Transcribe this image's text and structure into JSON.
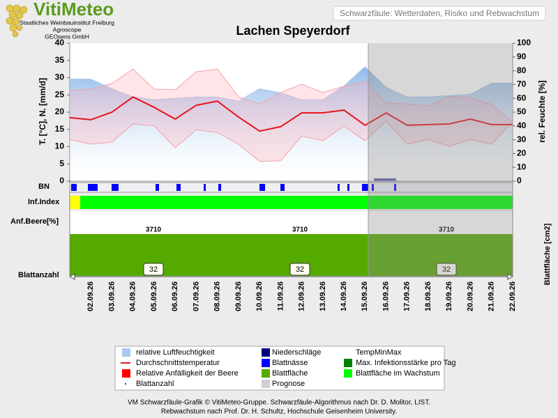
{
  "header": {
    "logo": "VitiMeteo",
    "org_lines": [
      "Staatliches Weinbauinstitut Freiburg",
      "Agroscope",
      "GEOsens GmbH"
    ],
    "subtitle_box": "Schwarzfäule: Wetterdaten, Risiko und Rebwachstum"
  },
  "chart_data": {
    "type": "line",
    "title": "Lachen Speyerdorf",
    "categories": [
      null,
      "02.09.26",
      "03.09.26",
      "04.09.26",
      "05.09.26",
      "06.09.26",
      "07.09.26",
      "08.09.26",
      "09.09.26",
      "10.09.26",
      "11.09.26",
      "12.09.26",
      "13.09.26",
      "14.09.26",
      "15.09.26",
      "16.09.26",
      "17.09.26",
      "18.09.26",
      "19.09.26",
      "20.09.26",
      "21.09.26",
      "22.09.26"
    ],
    "ylim": [
      0,
      40
    ],
    "yticks": [
      0,
      5,
      10,
      15,
      20,
      25,
      30,
      35,
      40
    ],
    "y2lim": [
      0,
      100
    ],
    "y2ticks": [
      0,
      10,
      20,
      30,
      40,
      50,
      60,
      70,
      80,
      90,
      100
    ],
    "ylabel": "T. [°C], N. [mm/d]",
    "y2label": "rel. Feuchte [%]",
    "series": [
      {
        "name": "relative Luftfeuchtigkeit",
        "color": "#a9c9ee",
        "axis": "y2",
        "values": [
          74,
          74,
          67,
          61,
          59,
          60,
          61,
          61,
          58,
          67,
          64,
          59,
          59,
          69,
          83,
          68,
          61,
          61,
          62,
          63,
          71,
          71
        ]
      },
      {
        "name": "Durchschnittstemperatur",
        "color": "#e8141c",
        "values": [
          18.4,
          17.8,
          20.0,
          24.4,
          21.4,
          18.0,
          22.0,
          23.2,
          18.6,
          14.5,
          15.8,
          19.8,
          19.8,
          20.6,
          16.2,
          19.8,
          16.2,
          16.4,
          16.6,
          18.0,
          16.4,
          16.4
        ]
      },
      {
        "name": "TempMinMax",
        "color": "#f2a0a8",
        "max": [
          26.3,
          26.7,
          28.3,
          32.5,
          26.7,
          26.5,
          31.7,
          32.5,
          24.4,
          22.4,
          25.7,
          28.1,
          25.7,
          27.5,
          28.9,
          22.6,
          22.4,
          21.8,
          24.6,
          24.2,
          22.2,
          17.2
        ],
        "min": [
          12.1,
          10.7,
          11.3,
          16.6,
          16.0,
          9.7,
          14.9,
          14.1,
          10.7,
          5.7,
          5.9,
          13.1,
          11.7,
          16.0,
          11.7,
          17.4,
          10.7,
          12.1,
          10.1,
          12.1,
          10.7,
          17.2
        ]
      }
    ],
    "rows": {
      "bn": "BN",
      "inf": "Inf.Index",
      "anf": "Anf.Beere[%]",
      "blattanzahl": "Blattanzahl",
      "blattflaeche": "Blattfläche [cm2]"
    },
    "leaf_area": [
      3710,
      3710,
      3710
    ],
    "leaf_count": [
      32,
      32,
      32
    ],
    "legend_items": [
      {
        "name": "Relative Anfälligkeit der Beere",
        "color": "#ff0000"
      },
      {
        "name": "Blattanzahl",
        "color": "#000000"
      },
      {
        "name": "Niederschläge",
        "color": "#00007f"
      },
      {
        "name": "Blattnässe",
        "color": "#0000ff"
      },
      {
        "name": "Blattfläche",
        "color": "#55aa00"
      },
      {
        "name": "Prognose",
        "color": "#d0d0d0"
      },
      {
        "name": "Max. Infektionsstärke pro Tag",
        "color": "#008000"
      },
      {
        "name": "Blattfläche im Wachstum",
        "color": "#00ff00"
      }
    ]
  },
  "footer": [
    "VM Schwarzfäule-Grafik © VitiMeteo-Gruppe. Schwarzfäule-Algorithmus nach Dr. D. Molitor, LIST.",
    "Rebwachstum nach Prof. Dr. H. Schultz, Hochschule Geisenheim University."
  ]
}
